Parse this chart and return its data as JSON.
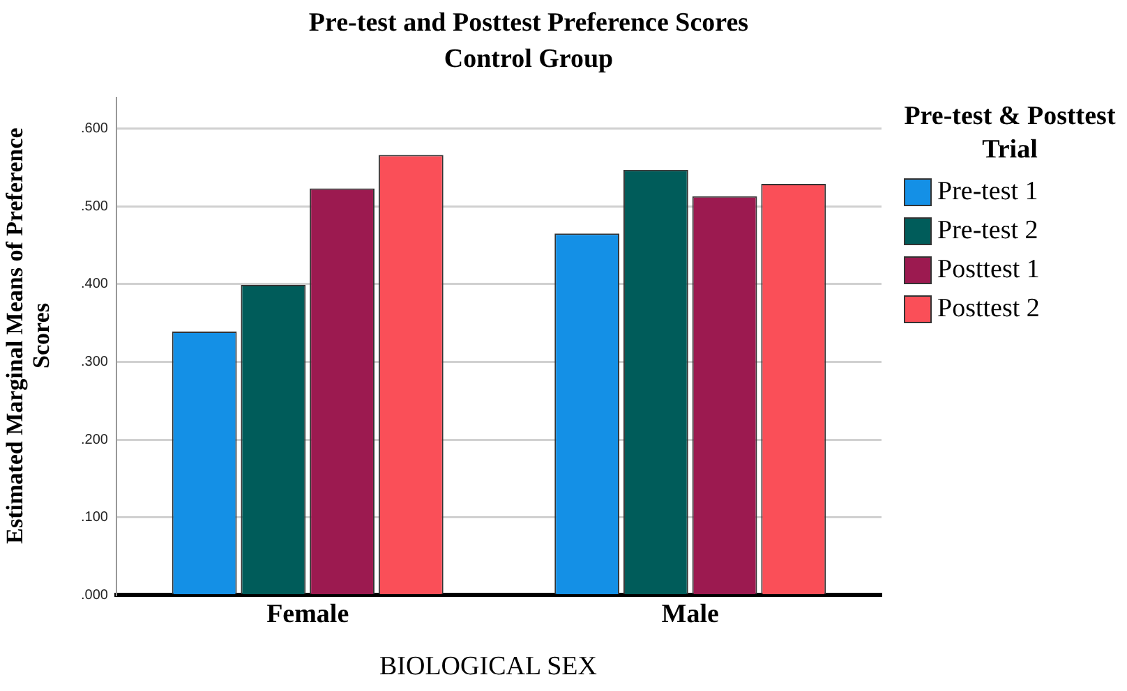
{
  "chart_data": {
    "type": "bar",
    "title": "Pre-test and Posttest Preference Scores",
    "subtitle": "Control Group",
    "xlabel": "BIOLOGICAL SEX",
    "ylabel": "Estimated Marginal Means of Preference Scores",
    "legend_title": "Pre-test & Posttest Trial",
    "categories": [
      "Female",
      "Male"
    ],
    "series": [
      {
        "name": "Pre-test 1",
        "color": "#1490e6",
        "values": [
          0.339,
          0.465
        ]
      },
      {
        "name": "Pre-test 2",
        "color": "#005c5a",
        "values": [
          0.399,
          0.547
        ]
      },
      {
        "name": "Posttest 1",
        "color": "#9c1a50",
        "values": [
          0.523,
          0.513
        ]
      },
      {
        "name": "Posttest 2",
        "color": "#fa4f58",
        "values": [
          0.566,
          0.529
        ]
      }
    ],
    "ylim": [
      0,
      0.64
    ],
    "yticks": [
      {
        "value": 0,
        "label": ".000"
      },
      {
        "value": 0.1,
        "label": ".100"
      },
      {
        "value": 0.2,
        "label": ".200"
      },
      {
        "value": 0.3,
        "label": ".300"
      },
      {
        "value": 0.4,
        "label": ".400"
      },
      {
        "value": 0.5,
        "label": ".500"
      },
      {
        "value": 0.6,
        "label": ".600"
      }
    ],
    "grid": "y",
    "legend": "right"
  }
}
